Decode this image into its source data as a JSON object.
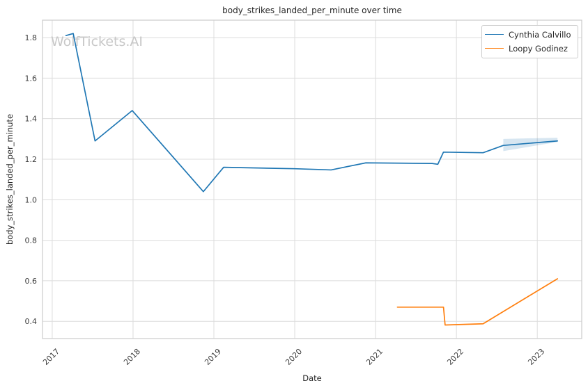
{
  "chart_data": {
    "type": "line",
    "title": "body_strikes_landed_per_minute over time",
    "xlabel": "Date",
    "ylabel": "body_strikes_landed_per_minute",
    "watermark": "WolfTickets.AI",
    "grid": true,
    "legend_position": "upper right",
    "xlim": [
      2016.88,
      2023.55
    ],
    "ylim": [
      0.315,
      1.886
    ],
    "x_ticks": [
      2017,
      2018,
      2019,
      2020,
      2021,
      2022,
      2023
    ],
    "x_tick_labels": [
      "2017",
      "2018",
      "2019",
      "2020",
      "2021",
      "2022",
      "2023"
    ],
    "y_ticks": [
      0.4,
      0.6,
      0.8,
      1.0,
      1.2,
      1.4,
      1.6,
      1.8
    ],
    "y_tick_labels": [
      "0.4",
      "0.6",
      "0.8",
      "1.0",
      "1.2",
      "1.4",
      "1.6",
      "1.8"
    ],
    "series": [
      {
        "name": "Cynthia Calvillo",
        "color": "#1f77b4",
        "x": [
          2017.17,
          2017.26,
          2017.53,
          2017.99,
          2018.87,
          2019.12,
          2020.0,
          2020.45,
          2020.88,
          2021.7,
          2021.77,
          2021.84,
          2022.33,
          2022.58,
          2023.25
        ],
        "y": [
          1.81,
          1.82,
          1.29,
          1.44,
          1.04,
          1.16,
          1.153,
          1.147,
          1.182,
          1.179,
          1.175,
          1.235,
          1.232,
          1.268,
          1.29
        ]
      },
      {
        "name": "Loopy Godinez",
        "color": "#ff7f0e",
        "x": [
          2021.27,
          2021.84,
          2021.86,
          2022.33,
          2023.25
        ],
        "y": [
          0.47,
          0.47,
          0.382,
          0.388,
          0.61
        ]
      }
    ],
    "confidence_band": {
      "series": "Cynthia Calvillo",
      "color": "#1f77b4",
      "opacity": 0.18,
      "x": [
        2022.58,
        2023.25
      ],
      "upper": [
        1.3,
        1.306
      ],
      "lower": [
        1.24,
        1.285
      ]
    }
  },
  "style": {
    "grid_color": "#dcdcdc",
    "spine_color": "#cccccc",
    "tick_label_color": "#3c3c3c",
    "watermark_color": "#c8c8c8",
    "line_width": 1.7
  }
}
